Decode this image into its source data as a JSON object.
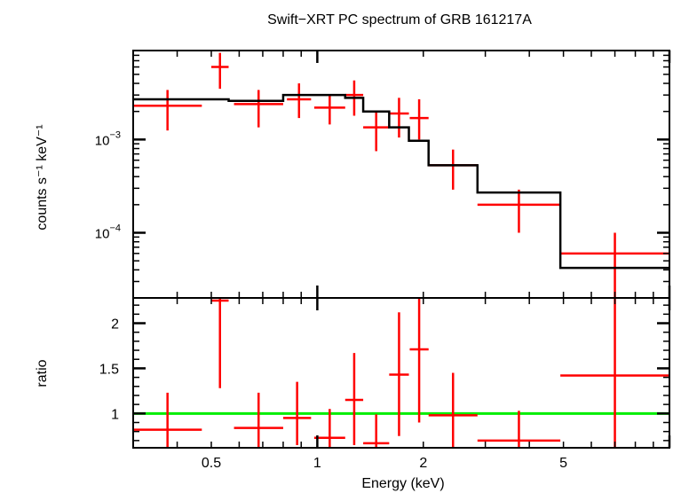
{
  "chart_data": {
    "type": "scatter",
    "title": "Swift−XRT PC spectrum of GRB 161217A",
    "xlabel": "Energy (keV)",
    "xscale": "log",
    "xlim": [
      0.3,
      10
    ],
    "xticks": [
      0.5,
      1,
      2,
      5
    ],
    "xtick_labels": [
      "0.5",
      "1",
      "2",
      "5"
    ],
    "colors": {
      "data": "#ff0000",
      "model": "#000000",
      "unity": "#00ee00"
    },
    "top_panel": {
      "ylabel": "counts s⁻¹ keV⁻¹",
      "yscale": "log",
      "ylim": [
        2e-05,
        0.009
      ],
      "yticks": [
        0.001,
        0.0001
      ],
      "ytick_labels": [
        {
          "base": "10",
          "exp": "−3"
        },
        {
          "base": "10",
          "exp": "−4"
        }
      ],
      "data": [
        {
          "xlo": 0.3,
          "xhi": 0.47,
          "y": 0.0023,
          "ylo": 0.00125,
          "yhi": 0.0034
        },
        {
          "xlo": 0.5,
          "xhi": 0.56,
          "y": 0.006,
          "ylo": 0.0035,
          "yhi": 0.0085
        },
        {
          "xlo": 0.58,
          "xhi": 0.8,
          "y": 0.0024,
          "ylo": 0.00135,
          "yhi": 0.0034
        },
        {
          "xlo": 0.82,
          "xhi": 0.96,
          "y": 0.0027,
          "ylo": 0.0017,
          "yhi": 0.004
        },
        {
          "xlo": 0.98,
          "xhi": 1.2,
          "y": 0.0022,
          "ylo": 0.00145,
          "yhi": 0.003
        },
        {
          "xlo": 1.2,
          "xhi": 1.35,
          "y": 0.003,
          "ylo": 0.0018,
          "yhi": 0.0043
        },
        {
          "xlo": 1.35,
          "xhi": 1.6,
          "y": 0.00135,
          "ylo": 0.00075,
          "yhi": 0.002
        },
        {
          "xlo": 1.6,
          "xhi": 1.82,
          "y": 0.0019,
          "ylo": 0.00105,
          "yhi": 0.0028
        },
        {
          "xlo": 1.83,
          "xhi": 2.07,
          "y": 0.0017,
          "ylo": 0.001,
          "yhi": 0.0027
        },
        {
          "xlo": 2.07,
          "xhi": 2.85,
          "y": 0.00053,
          "ylo": 0.00029,
          "yhi": 0.00078
        },
        {
          "xlo": 2.85,
          "xhi": 4.9,
          "y": 0.0002,
          "ylo": 0.0001,
          "yhi": 0.00029
        },
        {
          "xlo": 4.9,
          "xhi": 10,
          "y": 6e-05,
          "ylo": 2e-05,
          "yhi": 0.0001
        }
      ],
      "model": [
        {
          "xlo": 0.3,
          "xhi": 0.56,
          "y": 0.0027
        },
        {
          "xlo": 0.56,
          "xhi": 0.8,
          "y": 0.0026
        },
        {
          "xlo": 0.8,
          "xhi": 1.2,
          "y": 0.003
        },
        {
          "xlo": 1.2,
          "xhi": 1.35,
          "y": 0.0028
        },
        {
          "xlo": 1.35,
          "xhi": 1.6,
          "y": 0.002
        },
        {
          "xlo": 1.6,
          "xhi": 1.82,
          "y": 0.00135
        },
        {
          "xlo": 1.82,
          "xhi": 2.07,
          "y": 0.00097
        },
        {
          "xlo": 2.07,
          "xhi": 2.85,
          "y": 0.00053
        },
        {
          "xlo": 2.85,
          "xhi": 4.9,
          "y": 0.00027
        },
        {
          "xlo": 4.9,
          "xhi": 10,
          "y": 4.2e-05
        }
      ]
    },
    "bottom_panel": {
      "ylabel": "ratio",
      "yscale": "linear",
      "ylim": [
        0.62,
        2.28
      ],
      "yticks": [
        1,
        1.5,
        2
      ],
      "ytick_labels": [
        "1",
        "1.5",
        "2"
      ],
      "reference_line": 1,
      "data": [
        {
          "xlo": 0.3,
          "xhi": 0.47,
          "y": 0.82,
          "ylo": 0.62,
          "yhi": 1.23
        },
        {
          "xlo": 0.5,
          "xhi": 0.56,
          "y": 2.25,
          "ylo": 1.28,
          "yhi": 2.28
        },
        {
          "xlo": 0.58,
          "xhi": 0.8,
          "y": 0.84,
          "ylo": 0.62,
          "yhi": 1.23
        },
        {
          "xlo": 0.8,
          "xhi": 0.96,
          "y": 0.95,
          "ylo": 0.65,
          "yhi": 1.35
        },
        {
          "xlo": 0.98,
          "xhi": 1.2,
          "y": 0.73,
          "ylo": 0.62,
          "yhi": 1.05
        },
        {
          "xlo": 1.2,
          "xhi": 1.35,
          "y": 1.15,
          "ylo": 0.65,
          "yhi": 1.67
        },
        {
          "xlo": 1.35,
          "xhi": 1.6,
          "y": 0.67,
          "ylo": 0.62,
          "yhi": 0.99
        },
        {
          "xlo": 1.6,
          "xhi": 1.82,
          "y": 1.43,
          "ylo": 0.75,
          "yhi": 2.12
        },
        {
          "xlo": 1.83,
          "xhi": 2.07,
          "y": 1.71,
          "ylo": 0.9,
          "yhi": 2.28
        },
        {
          "xlo": 2.07,
          "xhi": 2.85,
          "y": 0.98,
          "ylo": 0.62,
          "yhi": 1.45
        },
        {
          "xlo": 2.85,
          "xhi": 4.9,
          "y": 0.7,
          "ylo": 0.62,
          "yhi": 1.03
        },
        {
          "xlo": 4.9,
          "xhi": 10,
          "y": 1.42,
          "ylo": 0.62,
          "yhi": 2.28
        }
      ]
    }
  }
}
